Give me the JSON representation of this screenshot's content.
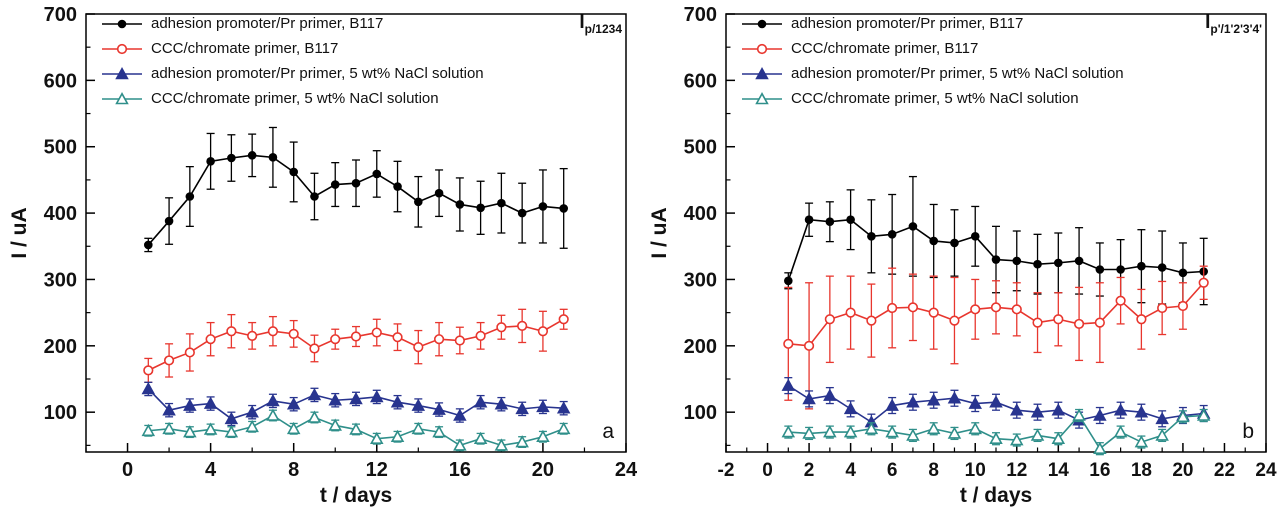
{
  "chart_data": [
    {
      "type": "line",
      "panel_label": "a",
      "corner_label": {
        "base": "I",
        "sub": "p/1234"
      },
      "xlabel": "t / days",
      "ylabel": "I / uA",
      "xlim": [
        -2,
        24
      ],
      "ylim": [
        40,
        700
      ],
      "x_major_ticks": [
        0,
        4,
        8,
        12,
        16,
        20,
        24
      ],
      "x_minor_step": 2,
      "y_major_ticks": [
        100,
        200,
        300,
        400,
        500,
        600,
        700
      ],
      "y_minor_step": 50,
      "legend_position": "top-left-inside",
      "x": [
        1,
        2,
        3,
        4,
        5,
        6,
        7,
        8,
        9,
        10,
        11,
        12,
        13,
        14,
        15,
        16,
        17,
        18,
        19,
        20,
        21
      ],
      "series": [
        {
          "name": "adhesion promoter/Pr primer, B117",
          "marker": "circle-filled",
          "color": "#000000",
          "values": [
            352,
            388,
            425,
            478,
            483,
            487,
            484,
            462,
            425,
            443,
            445,
            459,
            440,
            417,
            430,
            413,
            408,
            415,
            400,
            410,
            407
          ],
          "errors": [
            10,
            35,
            45,
            42,
            35,
            32,
            45,
            45,
            35,
            33,
            35,
            35,
            38,
            38,
            35,
            40,
            40,
            45,
            45,
            55,
            60
          ]
        },
        {
          "name": "CCC/chromate primer, B117",
          "marker": "circle-open",
          "color": "#e8362e",
          "values": [
            163,
            178,
            190,
            210,
            222,
            215,
            222,
            218,
            196,
            210,
            214,
            220,
            213,
            198,
            210,
            208,
            215,
            228,
            230,
            222,
            240
          ],
          "errors": [
            18,
            25,
            28,
            25,
            25,
            20,
            22,
            20,
            20,
            15,
            15,
            20,
            20,
            25,
            25,
            20,
            20,
            18,
            25,
            30,
            15
          ]
        },
        {
          "name": "adhesion promoter/Pr primer, 5 wt% NaCl solution",
          "marker": "triangle-filled",
          "color": "#28348f",
          "values": [
            135,
            103,
            110,
            113,
            90,
            100,
            117,
            112,
            126,
            118,
            120,
            123,
            115,
            110,
            104,
            95,
            115,
            112,
            105,
            108,
            106
          ],
          "errors": 10
        },
        {
          "name": "CCC/chromate primer, 5 wt% NaCl solution",
          "marker": "triangle-open",
          "color": "#2f8f8a",
          "values": [
            72,
            75,
            70,
            74,
            70,
            78,
            95,
            75,
            92,
            80,
            74,
            60,
            63,
            75,
            70,
            50,
            60,
            50,
            55,
            63,
            75
          ],
          "errors": 8
        }
      ]
    },
    {
      "type": "line",
      "panel_label": "b",
      "corner_label": {
        "base": "I",
        "sub": "p'/1'2'3'4'"
      },
      "xlabel": "t / days",
      "ylabel": "I / uA",
      "xlim": [
        -2,
        24
      ],
      "ylim": [
        40,
        700
      ],
      "x_major_ticks": [
        -2,
        0,
        2,
        4,
        6,
        8,
        10,
        12,
        14,
        16,
        18,
        20,
        22,
        24
      ],
      "x_minor_step": 1,
      "y_major_ticks": [
        100,
        200,
        300,
        400,
        500,
        600,
        700
      ],
      "y_minor_step": 50,
      "legend_position": "top-left-inside",
      "x": [
        1,
        2,
        3,
        4,
        5,
        6,
        7,
        8,
        9,
        10,
        11,
        12,
        13,
        14,
        15,
        16,
        17,
        18,
        19,
        20,
        21
      ],
      "series": [
        {
          "name": "adhesion promoter/Pr primer, B117",
          "marker": "circle-filled",
          "color": "#000000",
          "values": [
            298,
            390,
            387,
            390,
            365,
            368,
            380,
            358,
            355,
            365,
            330,
            328,
            323,
            325,
            328,
            315,
            315,
            320,
            318,
            310,
            312
          ],
          "errors": [
            12,
            25,
            30,
            45,
            55,
            60,
            75,
            55,
            50,
            45,
            50,
            45,
            45,
            45,
            50,
            40,
            45,
            55,
            55,
            45,
            50
          ]
        },
        {
          "name": "CCC/chromate primer, B117",
          "marker": "circle-open",
          "color": "#e8362e",
          "values": [
            203,
            200,
            240,
            250,
            238,
            257,
            258,
            250,
            238,
            255,
            258,
            255,
            235,
            240,
            233,
            235,
            268,
            240,
            257,
            260,
            295
          ],
          "errors": [
            85,
            95,
            65,
            55,
            55,
            60,
            50,
            55,
            65,
            45,
            40,
            40,
            45,
            40,
            55,
            60,
            35,
            45,
            40,
            35,
            25
          ]
        },
        {
          "name": "adhesion promoter/Pr primer, 5 wt% NaCl solution",
          "marker": "triangle-filled",
          "color": "#28348f",
          "values": [
            140,
            120,
            125,
            105,
            85,
            110,
            115,
            118,
            121,
            113,
            115,
            103,
            100,
            103,
            88,
            95,
            103,
            100,
            90,
            95,
            98
          ],
          "errors": 12
        },
        {
          "name": "CCC/chromate primer, 5 wt% NaCl solution",
          "marker": "triangle-open",
          "color": "#2f8f8a",
          "values": [
            70,
            68,
            70,
            70,
            75,
            70,
            65,
            75,
            68,
            75,
            60,
            58,
            65,
            60,
            95,
            45,
            70,
            55,
            65,
            93,
            95
          ],
          "errors": 9
        }
      ]
    }
  ]
}
